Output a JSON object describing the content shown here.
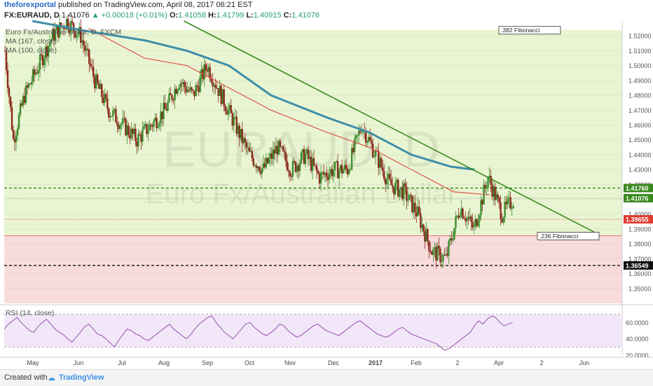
{
  "header": {
    "publisher": "theforexportal",
    "published_text": "published on TradingView.com, April 08, 2017 06:21 EST",
    "symbol": "FX:EURAUD, D",
    "last": "1.41076",
    "change": "▲ +0.00018 (+0.01%)",
    "ohlc": {
      "o": "1.41058",
      "h": "1.41799",
      "l": "1.40915",
      "c": "1.41076"
    },
    "o_label": "O:",
    "h_label": "H:",
    "l_label": "L:",
    "c_label": "C:"
  },
  "indicators": {
    "line1": "Euro Fx/Australian Dollar, D, FXCM",
    "ma167": "MA (167, close)",
    "ma100": "MA (100, close)"
  },
  "watermark": {
    "symbol": "EURAUD, D",
    "name": "Euro Fx/Australian Dollar"
  },
  "rsi_label": "RSI (14, close)",
  "footer": {
    "created_with": "Created with",
    "brand": "TradingView"
  },
  "colors": {
    "zone_green": "#e9f5d2",
    "zone_red": "#f8dcdc",
    "candle_up": "#3d8b2e",
    "candle_down": "#8b2a1e",
    "ma167": "#3d8ea8",
    "ma100": "#e0554a",
    "trend": "#3a8a1e",
    "rsi": "#9c4fb0",
    "rsi_bg": "#f1e7f8"
  },
  "chart_data": {
    "type": "candlestick",
    "title": "FX:EURAUD, D",
    "ylim": [
      1.34,
      1.53
    ],
    "y_ticks": [
      "1.52000",
      "1.51000",
      "1.50000",
      "1.49000",
      "1.48000",
      "1.47000",
      "1.46000",
      "1.45000",
      "1.44000",
      "1.43000",
      "1.42000",
      "1.41000",
      "1.40000",
      "1.39000",
      "1.38000",
      "1.37000",
      "1.36000",
      "1.35000"
    ],
    "x_ticks": [
      "May",
      "Jun",
      "Jul",
      "Aug",
      "Sep",
      "Oct",
      "Nov",
      "Dec",
      "2017",
      "Feb",
      "2",
      "Apr",
      "2",
      "Jun"
    ],
    "price_labels": [
      {
        "label": "1.41760",
        "value": 1.4176,
        "color": "#3a8a1e"
      },
      {
        "label": "1.41076",
        "value": 1.41076,
        "color": "#3a8a1e"
      },
      {
        "label": "1.39655",
        "value": 1.39655,
        "color": "#e03c31"
      },
      {
        "label": "1.36549",
        "value": 1.36549,
        "color": "#111111"
      }
    ],
    "fib_labels": [
      {
        "text": ".382 Fibonacci",
        "value": 1.524
      },
      {
        "text": ".236 Fibonacci",
        "value": 1.3855
      }
    ],
    "close_path": [
      [
        0,
        1.51
      ],
      [
        6,
        1.45
      ],
      [
        14,
        1.48
      ],
      [
        24,
        1.5
      ],
      [
        34,
        1.52
      ],
      [
        44,
        1.53
      ],
      [
        54,
        1.52
      ],
      [
        64,
        1.49
      ],
      [
        74,
        1.47
      ],
      [
        84,
        1.46
      ],
      [
        94,
        1.45
      ],
      [
        104,
        1.46
      ],
      [
        114,
        1.47
      ],
      [
        124,
        1.49
      ],
      [
        134,
        1.48
      ],
      [
        144,
        1.5
      ],
      [
        154,
        1.48
      ],
      [
        164,
        1.46
      ],
      [
        174,
        1.44
      ],
      [
        184,
        1.43
      ],
      [
        194,
        1.445
      ],
      [
        204,
        1.43
      ],
      [
        214,
        1.44
      ],
      [
        224,
        1.425
      ],
      [
        234,
        1.43
      ],
      [
        244,
        1.43
      ],
      [
        254,
        1.46
      ],
      [
        264,
        1.44
      ],
      [
        274,
        1.42
      ],
      [
        284,
        1.415
      ],
      [
        294,
        1.4
      ],
      [
        304,
        1.375
      ],
      [
        314,
        1.37
      ],
      [
        324,
        1.405
      ],
      [
        334,
        1.39
      ],
      [
        344,
        1.425
      ],
      [
        354,
        1.4
      ],
      [
        362,
        1.41
      ]
    ],
    "ma100": [
      [
        60,
        1.525
      ],
      [
        100,
        1.505
      ],
      [
        130,
        1.5
      ],
      [
        160,
        1.485
      ],
      [
        190,
        1.47
      ],
      [
        230,
        1.455
      ],
      [
        260,
        1.445
      ],
      [
        290,
        1.43
      ],
      [
        320,
        1.415
      ],
      [
        346,
        1.413
      ]
    ],
    "ma167": [
      [
        20,
        1.53
      ],
      [
        60,
        1.523
      ],
      [
        100,
        1.517
      ],
      [
        130,
        1.51
      ],
      [
        160,
        1.5
      ],
      [
        190,
        1.48
      ],
      [
        230,
        1.465
      ],
      [
        260,
        1.455
      ],
      [
        290,
        1.44
      ],
      [
        318,
        1.432
      ],
      [
        335,
        1.43
      ]
    ],
    "trend_line": {
      "from": [
        128,
        1.53
      ],
      "to": [
        420,
        1.388
      ]
    },
    "horizontal_lines": [
      {
        "value": 1.4176,
        "style": "dashed",
        "color": "#3a8a1e"
      },
      {
        "value": 1.41076,
        "style": "dotted",
        "color": "#7a9a7a"
      },
      {
        "value": 1.39655,
        "style": "dotted",
        "color": "#e03c31"
      },
      {
        "value": 1.3855,
        "style": "solid",
        "color": "#e07070"
      },
      {
        "value": 1.36549,
        "style": "dashed",
        "color": "#111111"
      }
    ],
    "zones": [
      {
        "from": 1.3855,
        "to": 1.524,
        "color": "#e9f5d2"
      },
      {
        "from": 1.34,
        "to": 1.3855,
        "color": "#f8dcdc"
      }
    ],
    "rsi": {
      "ylim": [
        20,
        80
      ],
      "ticks": [
        "60.0000",
        "40.0000",
        "20.0000"
      ],
      "levels": [
        70,
        30
      ],
      "values": [
        52,
        58,
        62,
        66,
        60,
        55,
        50,
        48,
        55,
        60,
        64,
        58,
        52,
        48,
        45,
        40,
        36,
        42,
        48,
        55,
        58,
        52,
        46,
        44,
        40,
        35,
        30,
        38,
        45,
        52,
        50,
        46,
        44,
        40,
        38,
        42,
        46,
        50,
        54,
        58,
        52,
        48,
        44,
        40,
        45,
        52,
        58,
        62,
        66,
        68,
        60,
        54,
        48,
        44,
        40,
        46,
        52,
        58,
        60,
        54,
        50,
        46,
        44,
        48,
        52,
        58,
        56,
        50,
        46,
        42,
        44,
        48,
        52,
        56,
        58,
        54,
        50,
        48,
        46,
        44,
        48,
        52,
        56,
        60,
        62,
        58,
        54,
        50,
        46,
        44,
        42,
        44,
        48,
        52,
        54,
        50,
        46,
        44,
        42,
        40,
        38,
        36,
        34,
        30,
        26,
        28,
        32,
        36,
        40,
        44,
        48,
        56,
        62,
        58,
        64,
        68,
        66,
        60,
        56,
        58,
        60
      ]
    }
  }
}
